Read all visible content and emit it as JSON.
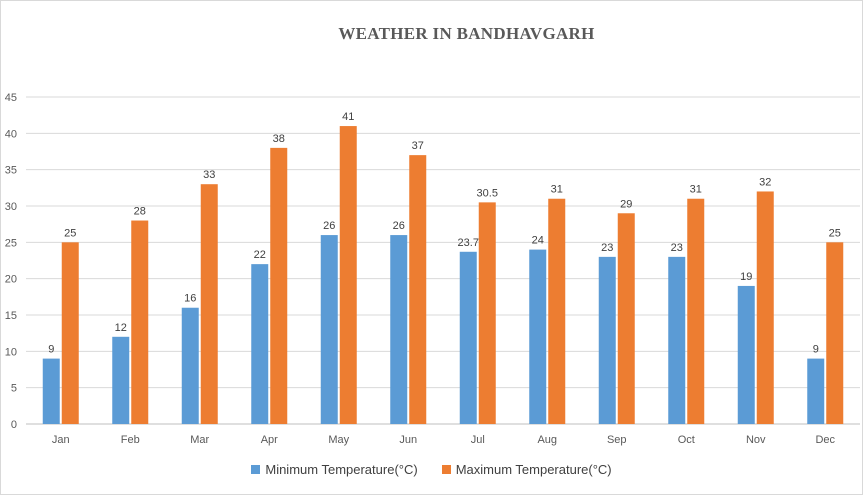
{
  "chart_data": {
    "type": "bar",
    "title": "WEATHER IN BANDHAVGARH",
    "xlabel": "",
    "ylabel": "",
    "categories": [
      "Jan",
      "Feb",
      "Mar",
      "Apr",
      "May",
      "Jun",
      "Jul",
      "Aug",
      "Sep",
      "Oct",
      "Nov",
      "Dec"
    ],
    "ylim": [
      0,
      45
    ],
    "yticks": [
      0,
      5,
      10,
      15,
      20,
      25,
      30,
      35,
      40,
      45
    ],
    "grid": true,
    "legend_position": "bottom",
    "series": [
      {
        "name": "Minimum Temperature(°C)",
        "color": "#5b9bd5",
        "values": [
          9,
          12,
          16,
          22,
          26,
          26,
          23.7,
          24,
          23,
          23,
          19,
          9
        ],
        "labels": [
          "9",
          "12",
          "16",
          "22",
          "26",
          "26",
          "23.7",
          "24",
          "23",
          "23",
          "19",
          "9"
        ]
      },
      {
        "name": "Maximum Temperature(°C)",
        "color": "#ed7d31",
        "values": [
          25,
          28,
          33,
          38,
          41,
          37,
          30.5,
          31,
          29,
          31,
          32,
          25
        ],
        "labels": [
          "25",
          "28",
          "33",
          "38",
          "41",
          "37",
          "30.5",
          "31",
          "29",
          "31",
          "32",
          "25"
        ]
      }
    ]
  }
}
